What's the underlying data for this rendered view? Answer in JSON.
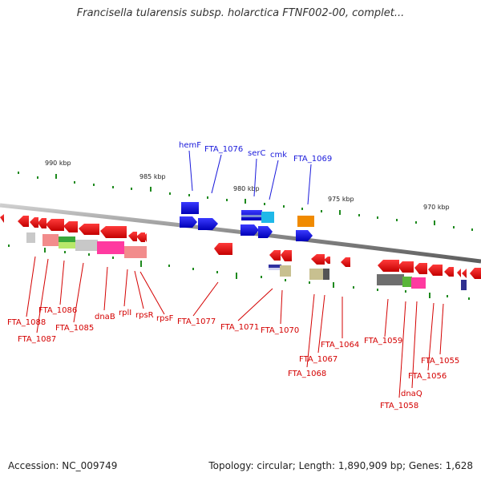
{
  "title": "Francisella tularensis subsp. holarctica FTNF002-00, complet...",
  "footer": {
    "accession": "Accession: NC_009749",
    "stats": "Topology: circular; Length: 1,890,909 bp; Genes: 1,628"
  },
  "scale_labels": [
    "990 kbp",
    "985 kbp",
    "980 kbp",
    "975 kbp",
    "970 kbp"
  ],
  "top_gene_labels": [
    "hemF",
    "FTA_1076",
    "serC",
    "cmk",
    "FTA_1069"
  ],
  "bottom_gene_labels": [
    "FTA_1088",
    "FTA_1087",
    "FTA_1086",
    "FTA_1085",
    "dnaB",
    "rplI",
    "rpsR",
    "rpsF",
    "FTA_1077",
    "FTA_1071",
    "FTA_1070",
    "FTA_1068",
    "FTA_1067",
    "FTA_1064",
    "FTA_1059",
    "dnaQ",
    "FTA_1058",
    "FTA_1056",
    "FTA_1055"
  ],
  "colors": {
    "forward_genes": "#1a1adb",
    "reverse_genes": "#e00000",
    "backbone": "#888888",
    "ticks": "#1e8a1e",
    "top_labels": "#1a1adb",
    "bottom_labels": "#d40000"
  }
}
